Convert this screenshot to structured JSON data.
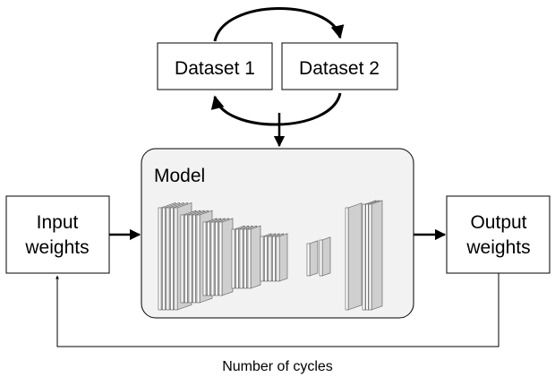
{
  "datasets": {
    "dataset1": "Dataset 1",
    "dataset2": "Dataset 2"
  },
  "model": {
    "label": "Model"
  },
  "input": {
    "line1": "Input",
    "line2": "weights"
  },
  "output": {
    "line1": "Output",
    "line2": "weights"
  },
  "loop": {
    "label": "Number of cycles"
  },
  "colors": {
    "model_fill": "#f2f2f2",
    "layer_face": "#ffffff",
    "layer_side": "#cfcfcf",
    "stroke": "#000000"
  },
  "icons": [
    "cycle-arrows-icon",
    "neural-network-layers-icon"
  ]
}
